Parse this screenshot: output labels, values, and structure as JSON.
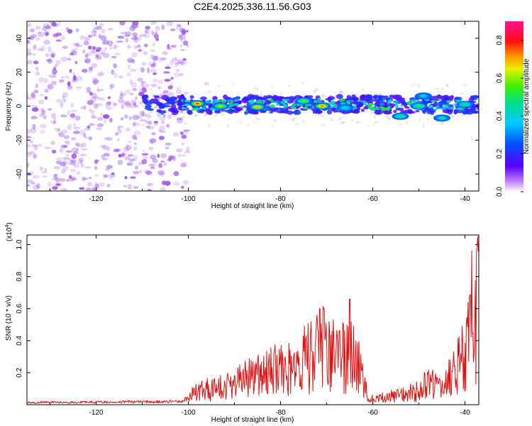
{
  "page_title": "C2E4.2025.336.11.56.G03",
  "colors": {
    "snr_line": "#e01010",
    "cluster_blob": "#7a3cf0",
    "scatter_blob": "#9b55e6",
    "frame": "#000000",
    "background": "#ffffff"
  },
  "chart_data": [
    {
      "id": "spectrogram",
      "type": "heatmap",
      "title": "C2E4.2025.336.11.56.G03",
      "xlabel": "Height of straight line (km)",
      "ylabel": "Frequency (Hz)",
      "xlim": [
        -135,
        -37
      ],
      "ylim": [
        -50,
        50
      ],
      "x_ticks": [
        -120,
        -100,
        -80,
        -60,
        -40
      ],
      "x_tick_labels": [
        "-120",
        "-100",
        "-80",
        "-60",
        "-40"
      ],
      "y_ticks": [
        -40,
        -20,
        0,
        20,
        40
      ],
      "y_tick_labels": [
        "-40",
        "-20",
        "0",
        "20",
        "40"
      ],
      "noise_region_x": [
        -135,
        -100
      ],
      "signal_band_x": [
        -110,
        -37
      ],
      "signal_band_center_hz": 1,
      "signal_band_halfwidth_hz": 5,
      "hotspots": [
        {
          "x": -98,
          "y": 1.5,
          "level": 0.85
        },
        {
          "x": -93,
          "y": 0,
          "level": 0.7
        },
        {
          "x": -85,
          "y": -0.5,
          "level": 0.78
        },
        {
          "x": -75,
          "y": 3,
          "level": 0.65
        },
        {
          "x": -71,
          "y": 0,
          "level": 0.82
        },
        {
          "x": -66,
          "y": -1,
          "level": 0.5
        },
        {
          "x": -54,
          "y": -6,
          "level": 0.55
        },
        {
          "x": -50,
          "y": 0,
          "level": 0.6
        },
        {
          "x": -49,
          "y": 6,
          "level": 0.45
        },
        {
          "x": -45,
          "y": -7,
          "level": 0.5
        },
        {
          "x": -40,
          "y": 1,
          "level": 0.55
        }
      ],
      "colorbar": {
        "label": "Normalized spectral amplitude",
        "range": [
          0.0,
          0.9
        ],
        "ticks": [
          0.0,
          0.2,
          0.4,
          0.6,
          0.8
        ],
        "tick_labels": [
          "0.0",
          "0.2",
          "0.4",
          "0.6",
          "0.8"
        ],
        "colormap": "rainbow (white-purple-blue-cyan-green-yellow-orange-red-magenta)"
      }
    },
    {
      "id": "snr",
      "type": "line",
      "xlabel": "Height of straight line (km)",
      "ylabel": "SNR (10 * v/v)",
      "scale_note_prefix": "(x10",
      "scale_note_exp": "4",
      "scale_note_suffix": ")",
      "xlim": [
        -135,
        -37
      ],
      "ylim": [
        0,
        1.06
      ],
      "x_ticks": [
        -120,
        -100,
        -80,
        -60,
        -40
      ],
      "x_tick_labels": [
        "-120",
        "-100",
        "-80",
        "-60",
        "-40"
      ],
      "y_ticks": [
        0.2,
        0.4,
        0.6,
        0.8,
        1.0
      ],
      "y_tick_labels": [
        "0.2",
        "0.4",
        "0.6",
        "0.8",
        "1.0"
      ],
      "envelope_km": [
        -135,
        -101,
        -100,
        -97,
        -94,
        -91,
        -89,
        -87,
        -85,
        -82,
        -79,
        -76,
        -73,
        -71,
        -69,
        -67,
        -65,
        -63,
        -61,
        -59,
        -55,
        -50,
        -46,
        -44,
        -42,
        -40,
        -39,
        -38,
        -37
      ],
      "envelope_snr": [
        0.02,
        0.03,
        0.09,
        0.16,
        0.18,
        0.2,
        0.27,
        0.3,
        0.32,
        0.38,
        0.42,
        0.46,
        0.55,
        0.62,
        0.58,
        0.52,
        0.55,
        0.45,
        0.08,
        0.07,
        0.1,
        0.16,
        0.3,
        0.34,
        0.4,
        0.55,
        0.78,
        0.96,
        1.05
      ],
      "peaks": [
        {
          "x": -71.5,
          "y": 0.6
        },
        {
          "x": -65,
          "y": 0.66
        },
        {
          "x": -38.5,
          "y": 0.96
        },
        {
          "x": -37.3,
          "y": 1.05
        }
      ]
    }
  ]
}
